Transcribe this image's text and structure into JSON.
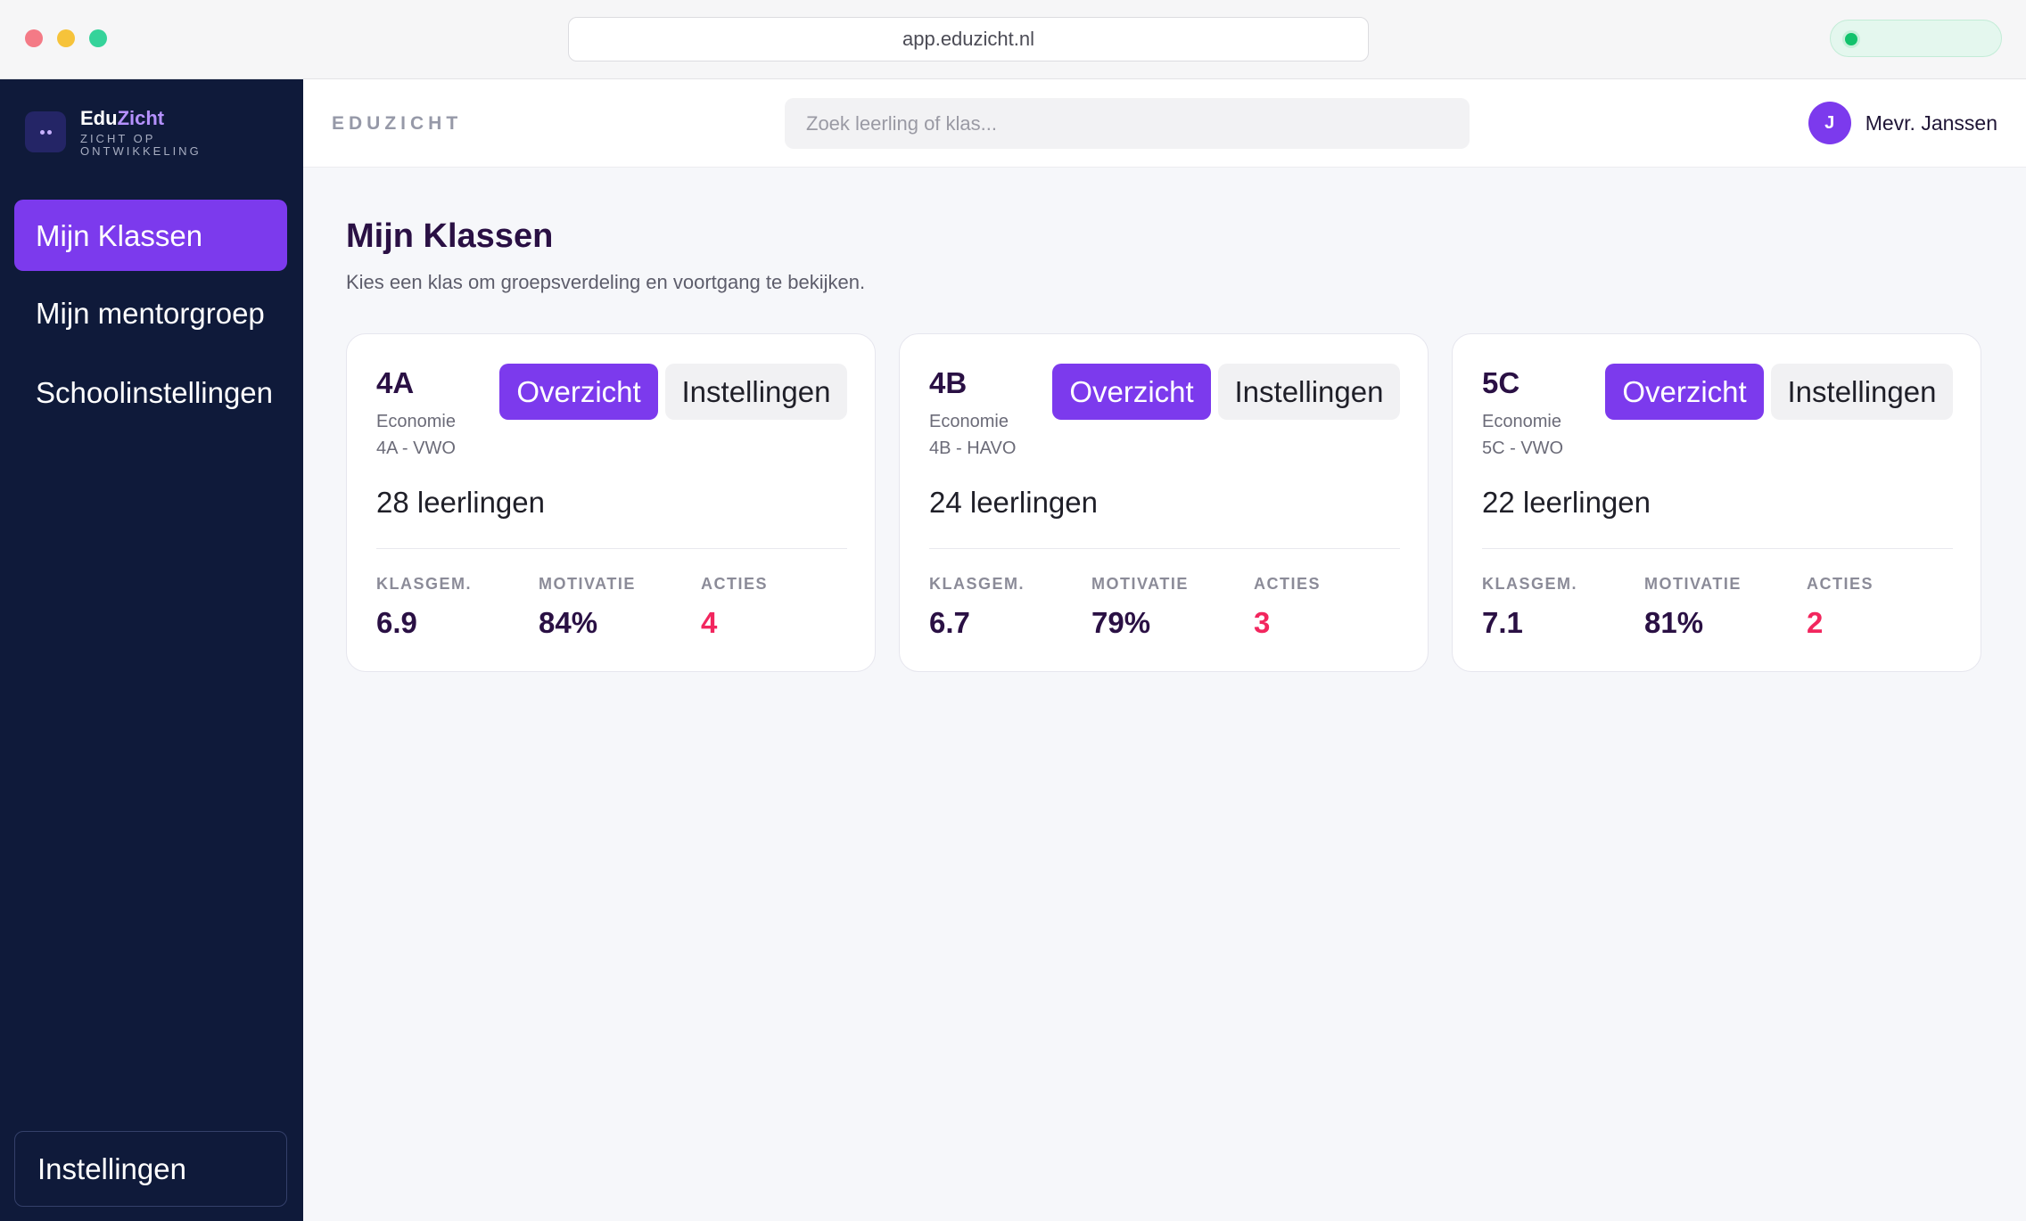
{
  "browser": {
    "url": "app.eduzicht.nl"
  },
  "brand": {
    "name_part1": "Edu",
    "name_part2": "Zicht",
    "tagline": "ZICHT OP ONTWIKKELING"
  },
  "sidebar": {
    "items": [
      {
        "label": "Mijn Klassen",
        "active": true
      },
      {
        "label": "Mijn mentorgroep",
        "active": false
      },
      {
        "label": "Schoolinstellingen",
        "active": false
      }
    ],
    "settings_label": "Instellingen"
  },
  "topbar": {
    "crumb": "EDUZICHT",
    "search_placeholder": "Zoek leerling of klas...",
    "user_initial": "J",
    "user_name": "Mevr. Janssen"
  },
  "main": {
    "title": "Mijn Klassen",
    "subtitle": "Kies een klas om groepsverdeling en voortgang te bekijken.",
    "labels": {
      "overview": "Overzicht",
      "settings": "Instellingen",
      "avg": "KLASGEM.",
      "motivation": "MOTIVATIE",
      "actions": "ACTIES"
    },
    "classes": [
      {
        "code": "4A",
        "subject": "Economie",
        "level": "4A - VWO",
        "students": "28 leerlingen",
        "avg": "6.9",
        "motivation": "84%",
        "actions": "4"
      },
      {
        "code": "4B",
        "subject": "Economie",
        "level": "4B - HAVO",
        "students": "24 leerlingen",
        "avg": "6.7",
        "motivation": "79%",
        "actions": "3"
      },
      {
        "code": "5C",
        "subject": "Economie",
        "level": "5C - VWO",
        "students": "22 leerlingen",
        "avg": "7.1",
        "motivation": "81%",
        "actions": "2"
      }
    ]
  },
  "colors": {
    "accent": "#7c3aed",
    "sidebar_bg": "#0f1a3a",
    "alert": "#f2265e",
    "heading": "#2a1044"
  }
}
